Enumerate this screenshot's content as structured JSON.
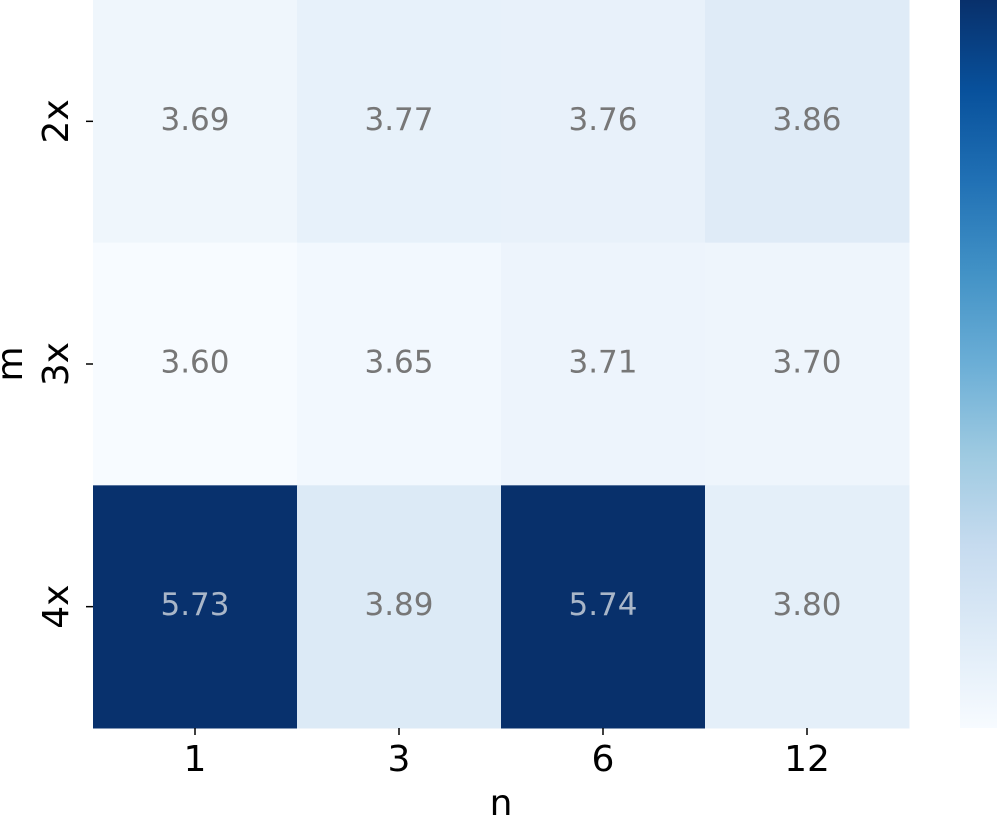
{
  "chart_data": {
    "type": "heatmap",
    "x_label": "n",
    "y_label": "m",
    "columns": [
      "1",
      "3",
      "6",
      "12"
    ],
    "rows": [
      "2x",
      "3x",
      "4x"
    ],
    "values": [
      [
        3.69,
        3.77,
        3.76,
        3.86
      ],
      [
        3.6,
        3.65,
        3.71,
        3.7
      ],
      [
        5.73,
        3.89,
        5.74,
        3.8
      ]
    ],
    "value_labels": [
      [
        "3.69",
        "3.77",
        "3.76",
        "3.86"
      ],
      [
        "3.60",
        "3.65",
        "3.71",
        "3.70"
      ],
      [
        "5.73",
        "3.89",
        "5.74",
        "3.80"
      ]
    ],
    "colormap": "Blues",
    "colorbar": true
  }
}
